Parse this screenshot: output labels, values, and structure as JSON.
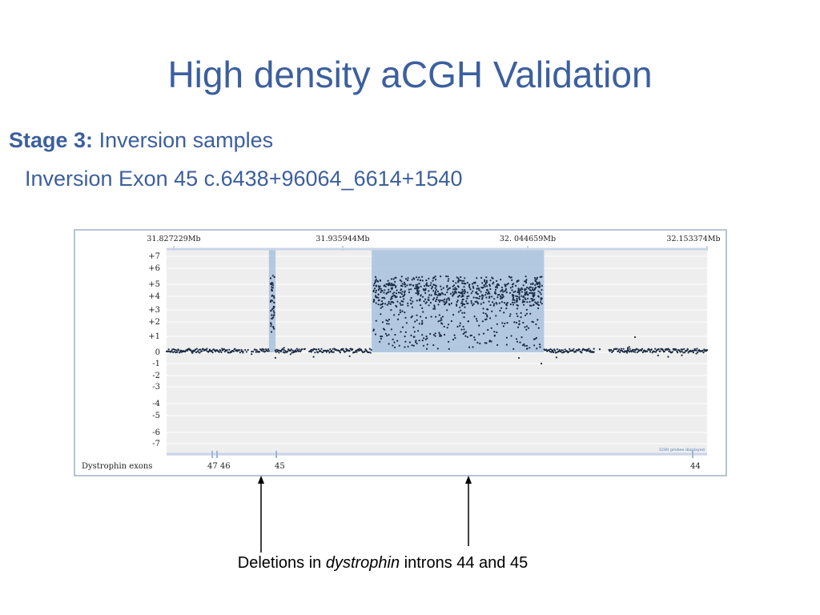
{
  "slide": {
    "title": "High density aCGH Validation",
    "stage_label": "Stage 3:",
    "stage_text": "Inversion samples",
    "subtitle": "Inversion Exon 45 c.6438+96064_6614+1540",
    "caption_pre": "Deletions in ",
    "caption_italic": "dystrophin",
    "caption_post": " introns 44 and 45"
  },
  "chart_data": {
    "type": "scatter",
    "top_tick_labels": [
      "31.827229Mb",
      "31.935944Mb",
      "32. 044659Mb",
      "32.153374Mb"
    ],
    "y_tick_labels": [
      "+7",
      "+6",
      "+5",
      "+4",
      "+3",
      "+2",
      "+1",
      "0",
      "-1",
      "-2",
      "-3",
      "-4",
      "-5",
      "-6",
      "-7"
    ],
    "ylim": [
      -7,
      7
    ],
    "track_label": "Dystrophin exons",
    "exon_labels": [
      "47 46",
      "45",
      "44"
    ],
    "probe_count_text": "3280 probes displayed",
    "shaded_regions": [
      {
        "name": "intron-45-deletion-small",
        "x_start": 31.889,
        "x_end": 31.893,
        "y_top": 6.5
      },
      {
        "name": "intron-44-deletion-large",
        "x_start": 31.951,
        "x_end": 32.055,
        "y_top": 6.5
      }
    ],
    "x_range": [
      31.827229,
      32.153374
    ],
    "point_color": "#1b2a44",
    "shade_color": "#a7c1dd",
    "plot_bg": "#eeeeee"
  },
  "colors": {
    "title": "#3c5f9e",
    "frame": "#6f89b5",
    "arrow": "#000000"
  }
}
